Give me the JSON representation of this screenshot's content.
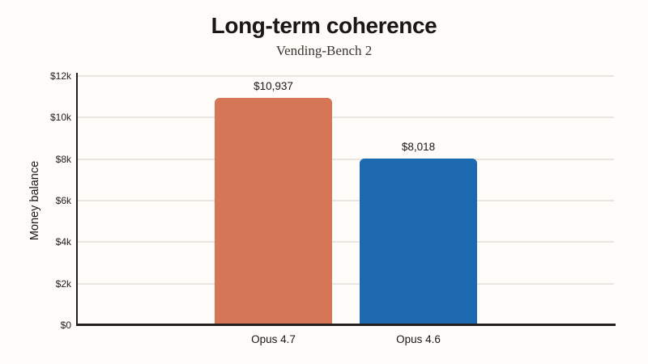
{
  "chart_data": {
    "type": "bar",
    "title": "Long-term coherence",
    "subtitle": "Vending-Bench 2",
    "xlabel": "",
    "ylabel": "Money balance",
    "categories": [
      "Opus 4.7",
      "Opus 4.6"
    ],
    "values": [
      10937,
      8018
    ],
    "value_labels": [
      "$10,937",
      "$8,018"
    ],
    "bar_colors": [
      "#d57757",
      "#1d69b0"
    ],
    "ylim": [
      0,
      12000
    ],
    "yticks": [
      0,
      2000,
      4000,
      6000,
      8000,
      10000,
      12000
    ],
    "ytick_labels": [
      "$0",
      "$2k",
      "$4k",
      "$6k",
      "$8k",
      "$10k",
      "$12k"
    ],
    "grid": "horizontal",
    "legend": "none",
    "colors": {
      "background": "#fdfcf9",
      "axis": "#21201e",
      "gridline": "#e9e6e0",
      "text": "#191817",
      "bar_opus_4_7": "#d57757",
      "bar_opus_4_6": "#1d69b0"
    }
  }
}
